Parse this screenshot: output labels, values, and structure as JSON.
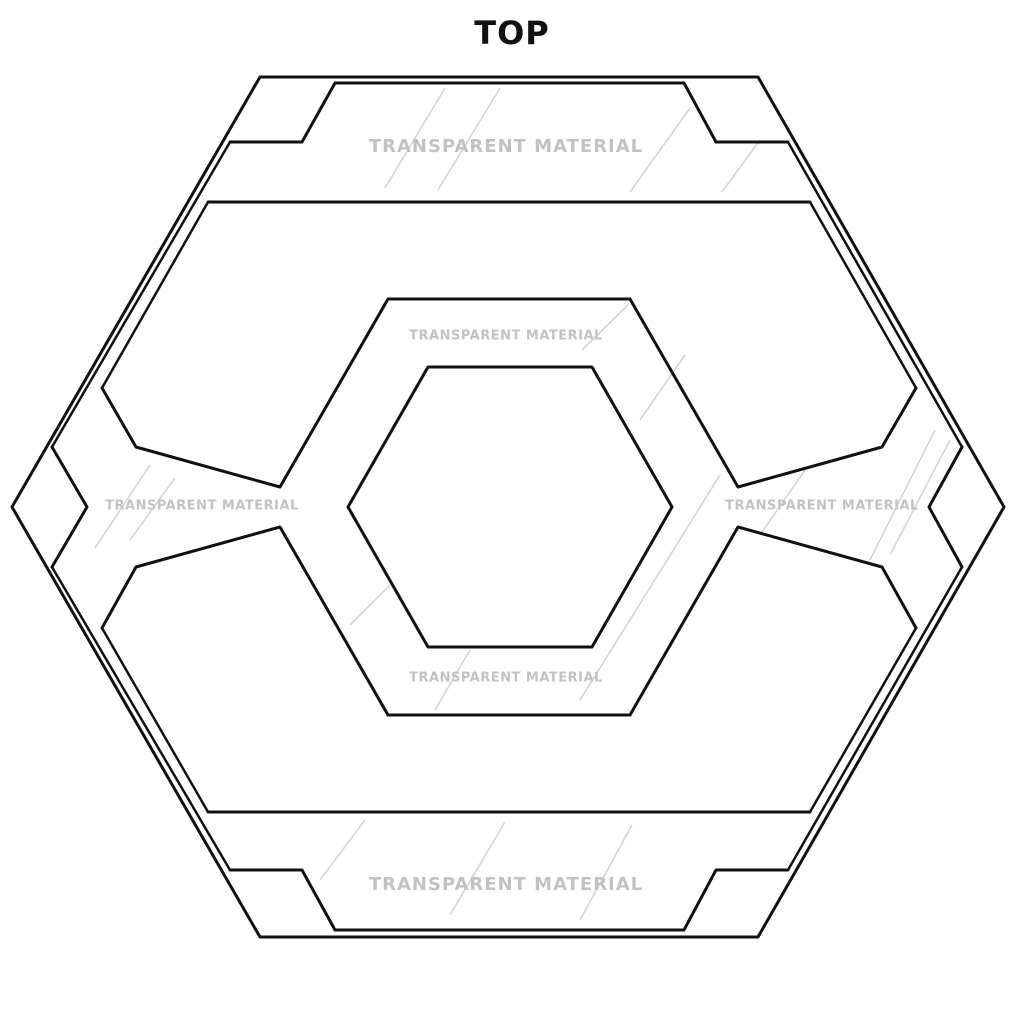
{
  "title": "TOP",
  "panels": {
    "top": "TRANSPARENT MATERIAL",
    "bottom": "TRANSPARENT MATERIAL",
    "left": "TRANSPARENT MATERIAL",
    "right": "TRANSPARENT MATERIAL",
    "inner_top": "TRANSPARENT MATERIAL",
    "inner_bottom": "TRANSPARENT MATERIAL"
  },
  "colors": {
    "outline": "#111111",
    "label": "#c2c2c2",
    "background": "#ffffff"
  }
}
